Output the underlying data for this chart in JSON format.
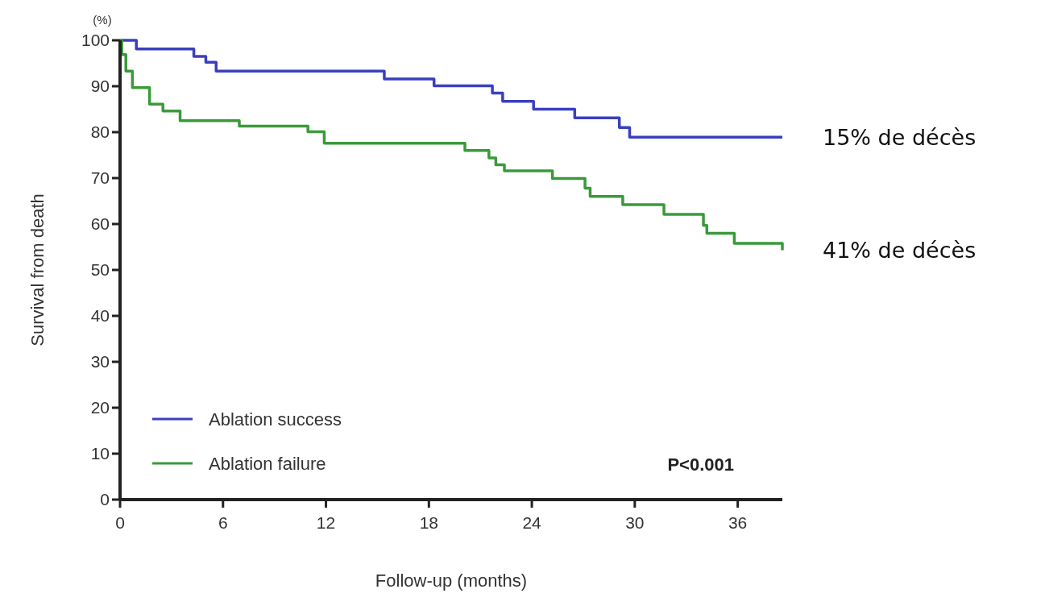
{
  "chart_data": {
    "type": "step",
    "xlabel": "Follow-up (months)",
    "ylabel": "Survival from death",
    "xlim": [
      0,
      38.6
    ],
    "ylim": [
      0,
      100
    ],
    "xticks": [
      0,
      6,
      12,
      18,
      24,
      30,
      36
    ],
    "yticks": [
      0,
      10,
      20,
      30,
      40,
      50,
      60,
      70,
      80,
      90,
      100
    ],
    "grid": false,
    "legend": "bottom left",
    "marker": "none",
    "line_style": "solid",
    "series": [
      {
        "name": "Ablation success",
        "color": "#3a3fc0",
        "x": [
          0,
          0.95,
          4.3,
          5.0,
          5.6,
          15.4,
          18.3,
          21.7,
          22.3,
          24.1,
          26.5,
          29.1,
          29.7,
          38.6
        ],
        "values": [
          100,
          98.1,
          96.5,
          95.2,
          93.3,
          91.6,
          90.1,
          88.5,
          86.7,
          85.0,
          83.1,
          81.0,
          78.9,
          78.9
        ]
      },
      {
        "name": "Ablation failure",
        "color": "#3a9a3a",
        "x": [
          0,
          0.1,
          0.34,
          0.72,
          1.72,
          2.5,
          3.5,
          6.95,
          10.95,
          11.9,
          20.1,
          21.5,
          21.9,
          22.4,
          25.2,
          27.1,
          27.4,
          29.3,
          31.7,
          34.0,
          34.2,
          35.8,
          38.6
        ],
        "values": [
          100,
          96.9,
          93.3,
          89.7,
          86.1,
          84.6,
          82.5,
          81.3,
          80.1,
          77.6,
          76.0,
          74.4,
          72.9,
          71.6,
          69.9,
          67.8,
          66.0,
          64.2,
          62.1,
          59.7,
          58.0,
          55.8,
          54.3
        ]
      }
    ],
    "annotations": [
      "(%)",
      {
        "text": "15% de décès",
        "x": 38.6,
        "y": 78.9
      },
      {
        "text": "41% de décès",
        "x": 38.6,
        "y": 54.3
      },
      "P<0.001"
    ]
  }
}
